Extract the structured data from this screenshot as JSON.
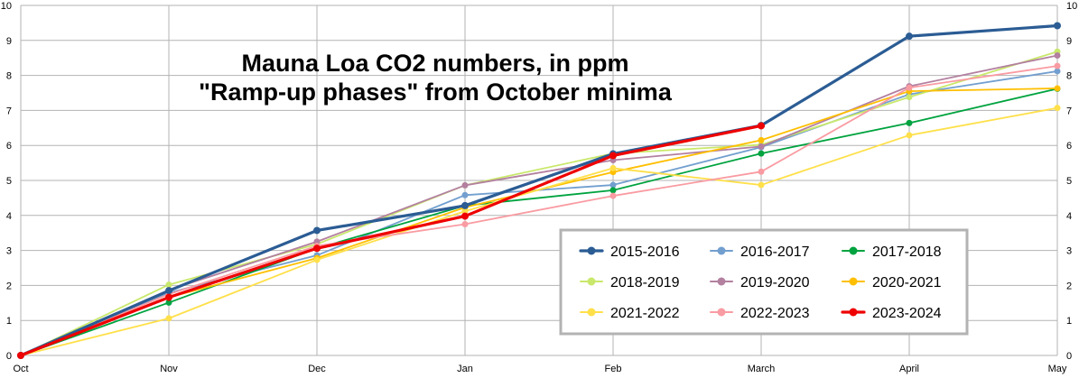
{
  "chart_data": {
    "type": "line",
    "title_lines": [
      "Mauna Loa CO2 numbers, in ppm",
      "\"Ramp-up phases\" from October minima"
    ],
    "xlabel": "",
    "ylabel": "",
    "categories": [
      "Oct",
      "Nov",
      "Dec",
      "Jan",
      "Feb",
      "March",
      "April",
      "May"
    ],
    "ylim": [
      0,
      10
    ],
    "yticks": [
      "0",
      "1",
      "2",
      "3",
      "4",
      "5",
      "6",
      "7",
      "8",
      "9",
      "10"
    ],
    "grid": true,
    "legend_position": "bottom-right",
    "series": [
      {
        "name": "2015-2016",
        "color": "#2b5c94",
        "emphasis": true,
        "values": [
          0,
          1.85,
          3.57,
          4.28,
          5.76,
          6.57,
          9.12,
          9.42
        ]
      },
      {
        "name": "2016-2017",
        "color": "#729fcf",
        "emphasis": false,
        "values": [
          0,
          1.79,
          2.86,
          4.58,
          4.87,
          5.95,
          7.46,
          8.12
        ]
      },
      {
        "name": "2017-2018",
        "color": "#00a33f",
        "emphasis": false,
        "values": [
          0,
          1.51,
          3.06,
          4.28,
          4.72,
          5.77,
          6.64,
          7.62
        ]
      },
      {
        "name": "2018-2019",
        "color": "#c9e86b",
        "emphasis": false,
        "values": [
          0,
          2.02,
          3.18,
          4.86,
          5.77,
          6.02,
          7.38,
          8.68
        ]
      },
      {
        "name": "2019-2020",
        "color": "#b380a0",
        "emphasis": false,
        "values": [
          0,
          1.87,
          3.25,
          4.86,
          5.58,
          5.97,
          7.69,
          8.57
        ]
      },
      {
        "name": "2020-2021",
        "color": "#ffbf00",
        "emphasis": false,
        "values": [
          0,
          1.66,
          2.78,
          4.23,
          5.24,
          6.15,
          7.55,
          7.63
        ]
      },
      {
        "name": "2021-2022",
        "color": "#ffe04a",
        "emphasis": false,
        "values": [
          0,
          1.06,
          2.73,
          4.12,
          5.35,
          4.87,
          6.29,
          7.07
        ]
      },
      {
        "name": "2022-2023",
        "color": "#f99ba2",
        "emphasis": false,
        "values": [
          0,
          1.75,
          3.13,
          3.75,
          4.56,
          5.25,
          7.65,
          8.27
        ]
      },
      {
        "name": "2023-2024",
        "color": "#ee0000",
        "emphasis": true,
        "values": [
          0,
          1.66,
          3.06,
          3.98,
          5.71,
          6.56,
          null,
          null
        ]
      }
    ]
  }
}
